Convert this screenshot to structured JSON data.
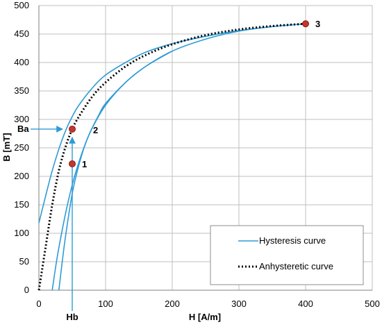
{
  "chart_data": {
    "type": "line",
    "xlabel": "H [A/m]",
    "ylabel": "B [mT]",
    "xlim": [
      0,
      500
    ],
    "ylim": [
      0,
      500
    ],
    "xticks": [
      0,
      100,
      200,
      300,
      400,
      500
    ],
    "yticks": [
      0,
      50,
      100,
      150,
      200,
      250,
      300,
      350,
      400,
      450,
      500
    ],
    "grid": true,
    "legend_position": "bottom-right",
    "colors": {
      "hysteresis": "#2e9bd6",
      "anhysteretic": "#000000",
      "point_fill": "#c0392b",
      "point_stroke": "#8b1a1a",
      "grid": "#bfbfbf"
    },
    "series": [
      {
        "name": "Hysteresis curve",
        "style": "solid",
        "branches": [
          {
            "x": [
              0,
              10,
              20,
              30,
              40,
              50,
              60,
              80,
              100,
              130,
              160,
              200,
              250,
              300,
              350,
              400
            ],
            "y": [
              118,
              165,
              210,
              248,
              280,
              305,
              325,
              355,
              378,
              400,
              418,
              433,
              446,
              456,
              463,
              468
            ]
          },
          {
            "x": [
              20,
              25,
              30,
              40,
              50,
              60,
              70,
              80,
              100,
              130,
              160,
              200,
              250,
              300,
              350,
              400
            ],
            "y": [
              0,
              40,
              75,
              135,
              185,
              225,
              258,
              285,
              325,
              365,
              393,
              420,
              441,
              455,
              463,
              468
            ]
          },
          {
            "x": [
              30,
              35,
              40,
              50,
              60,
              70,
              80,
              90,
              100,
              130,
              160,
              200
            ],
            "y": [
              0,
              50,
              95,
              170,
              220,
              258,
              285,
              308,
              328,
              365,
              393,
              420
            ]
          }
        ]
      },
      {
        "name": "Anhysteretic curve",
        "style": "dotted",
        "x": [
          0,
          10,
          20,
          30,
          40,
          50,
          60,
          80,
          100,
          130,
          160,
          200,
          250,
          300,
          350,
          400
        ],
        "y": [
          0,
          75,
          150,
          210,
          252,
          283,
          305,
          340,
          365,
          393,
          413,
          432,
          448,
          458,
          464,
          468
        ]
      }
    ],
    "points": [
      {
        "label": "1",
        "x": 50,
        "y": 222
      },
      {
        "label": "2",
        "x": 50,
        "y": 283
      },
      {
        "label": "3",
        "x": 400,
        "y": 468
      }
    ],
    "markers": {
      "ba": {
        "label": "Ba",
        "y": 283
      },
      "hb": {
        "label": "Hb",
        "x": 50
      }
    }
  }
}
